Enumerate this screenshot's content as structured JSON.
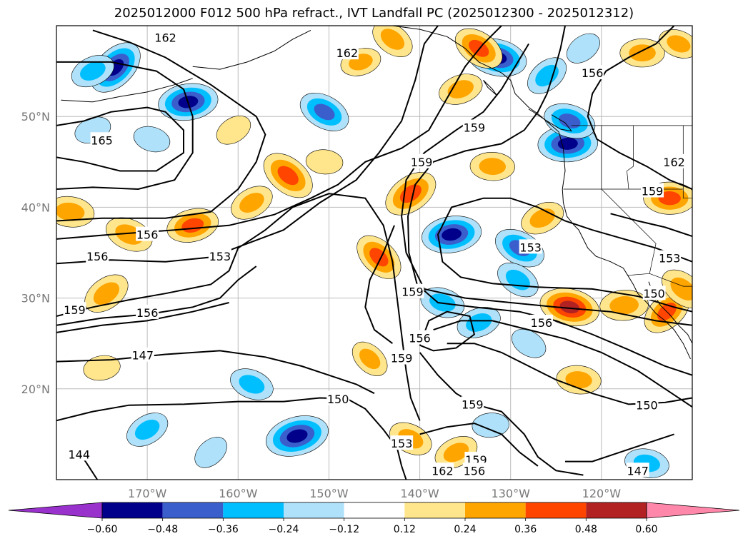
{
  "chart_data": {
    "type": "heatmap",
    "title": "2025012000 F012 500 hPa refract., IVT Landfall PC (2025012300 - 2025012312)",
    "x_axis": {
      "range": [
        -180,
        -110
      ],
      "ticks": [
        -170,
        -160,
        -150,
        -140,
        -130,
        -120
      ],
      "tick_labels": [
        "170°W",
        "160°W",
        "150°W",
        "140°W",
        "130°W",
        "120°W"
      ]
    },
    "y_axis": {
      "range": [
        10,
        60
      ],
      "ticks": [
        20,
        30,
        40,
        50
      ],
      "tick_labels": [
        "20°N",
        "30°N",
        "40°N",
        "50°N"
      ]
    },
    "grid": true,
    "colorbar": {
      "orientation": "horizontal",
      "extend": "both",
      "boundaries": [
        -0.6,
        -0.48,
        -0.36,
        -0.24,
        -0.12,
        0.12,
        0.24,
        0.36,
        0.48,
        0.6
      ],
      "tick_labels": [
        "−0.60",
        "−0.48",
        "−0.36",
        "−0.24",
        "−0.12",
        "0.12",
        "0.24",
        "0.36",
        "0.48",
        "0.60"
      ],
      "colors": [
        "#9932cc",
        "#00008b",
        "#3a5fcd",
        "#00bfff",
        "#afe1fa",
        "#ffffff",
        "#ffe68c",
        "#ffa500",
        "#ff4500",
        "#b22222",
        "#ff88aa"
      ]
    },
    "contour_levels": [
      144,
      147,
      150,
      153,
      156,
      159,
      162,
      165
    ],
    "contour_labels": [
      {
        "text": "162",
        "lon": -168.0,
        "lat": 58.7
      },
      {
        "text": "162",
        "lon": -148.0,
        "lat": 57.0
      },
      {
        "text": "156",
        "lon": -121.0,
        "lat": 54.8
      },
      {
        "text": "165",
        "lon": -175.0,
        "lat": 47.4
      },
      {
        "text": "159",
        "lon": -134.0,
        "lat": 48.8
      },
      {
        "text": "159",
        "lon": -139.8,
        "lat": 45.0
      },
      {
        "text": "162",
        "lon": -112.0,
        "lat": 45.0
      },
      {
        "text": "159",
        "lon": -114.4,
        "lat": 41.8
      },
      {
        "text": "156",
        "lon": -170.0,
        "lat": 37.0
      },
      {
        "text": "156",
        "lon": -175.5,
        "lat": 34.6
      },
      {
        "text": "153",
        "lon": -162.0,
        "lat": 34.6
      },
      {
        "text": "153",
        "lon": -127.8,
        "lat": 35.6
      },
      {
        "text": "153",
        "lon": -112.5,
        "lat": 34.4
      },
      {
        "text": "159",
        "lon": -140.8,
        "lat": 30.7
      },
      {
        "text": "150",
        "lon": -114.2,
        "lat": 30.5
      },
      {
        "text": "159",
        "lon": -178.0,
        "lat": 28.7
      },
      {
        "text": "156",
        "lon": -170.0,
        "lat": 28.4
      },
      {
        "text": "156",
        "lon": -126.6,
        "lat": 27.3
      },
      {
        "text": "156",
        "lon": -140.0,
        "lat": 25.6
      },
      {
        "text": "159",
        "lon": -142.0,
        "lat": 23.4
      },
      {
        "text": "147",
        "lon": -170.5,
        "lat": 23.7
      },
      {
        "text": "159",
        "lon": -134.2,
        "lat": 18.3
      },
      {
        "text": "150",
        "lon": -149.0,
        "lat": 18.9
      },
      {
        "text": "150",
        "lon": -115.0,
        "lat": 18.2
      },
      {
        "text": "153",
        "lon": -142.0,
        "lat": 14.0
      },
      {
        "text": "144",
        "lon": -177.5,
        "lat": 12.8
      },
      {
        "text": "159",
        "lon": -133.8,
        "lat": 12.2
      },
      {
        "text": "162",
        "lon": -137.5,
        "lat": 11.0
      },
      {
        "text": "156",
        "lon": -134.0,
        "lat": 11.0
      },
      {
        "text": "147",
        "lon": -116.0,
        "lat": 11.0
      }
    ],
    "pc_features": [
      {
        "lon": -173.5,
        "lat": 55.4,
        "sign": -1,
        "mag": 0.5
      },
      {
        "lon": -165.5,
        "lat": 51.6,
        "sign": -1,
        "mag": 0.5
      },
      {
        "lon": -150.5,
        "lat": 50.5,
        "sign": -1,
        "mag": 0.4
      },
      {
        "lon": -176.0,
        "lat": 55.0,
        "sign": -1,
        "mag": 0.3
      },
      {
        "lon": -131.5,
        "lat": 56.5,
        "sign": -1,
        "mag": 0.5
      },
      {
        "lon": -126.0,
        "lat": 54.5,
        "sign": -1,
        "mag": 0.3
      },
      {
        "lon": -123.7,
        "lat": 47.0,
        "sign": -1,
        "mag": 0.5
      },
      {
        "lon": -133.5,
        "lat": 57.5,
        "sign": 1,
        "mag": 0.4
      },
      {
        "lon": -135.5,
        "lat": 53.0,
        "sign": 1,
        "mag": 0.3
      },
      {
        "lon": -123.5,
        "lat": 49.5,
        "sign": -1,
        "mag": 0.4
      },
      {
        "lon": -141.0,
        "lat": 41.5,
        "sign": 1,
        "mag": 0.45
      },
      {
        "lon": -132.0,
        "lat": 44.5,
        "sign": 1,
        "mag": 0.3
      },
      {
        "lon": -154.5,
        "lat": 43.5,
        "sign": 1,
        "mag": 0.45
      },
      {
        "lon": -165.0,
        "lat": 38.0,
        "sign": 1,
        "mag": 0.4
      },
      {
        "lon": -172.0,
        "lat": 37.0,
        "sign": 1,
        "mag": 0.35
      },
      {
        "lon": -158.5,
        "lat": 40.5,
        "sign": 1,
        "mag": 0.3
      },
      {
        "lon": -178.5,
        "lat": 39.5,
        "sign": 1,
        "mag": 0.35
      },
      {
        "lon": -144.5,
        "lat": 34.5,
        "sign": 1,
        "mag": 0.4
      },
      {
        "lon": -136.5,
        "lat": 37.0,
        "sign": -1,
        "mag": 0.5
      },
      {
        "lon": -129.0,
        "lat": 35.5,
        "sign": -1,
        "mag": 0.4
      },
      {
        "lon": -126.5,
        "lat": 38.8,
        "sign": 1,
        "mag": 0.3
      },
      {
        "lon": -123.5,
        "lat": 29.0,
        "sign": 1,
        "mag": 0.5
      },
      {
        "lon": -112.8,
        "lat": 28.5,
        "sign": 1,
        "mag": 0.4
      },
      {
        "lon": -117.5,
        "lat": 29.2,
        "sign": 1,
        "mag": 0.35
      },
      {
        "lon": -129.2,
        "lat": 32.0,
        "sign": -1,
        "mag": 0.3
      },
      {
        "lon": -133.5,
        "lat": 27.3,
        "sign": -1,
        "mag": 0.3
      },
      {
        "lon": -137.5,
        "lat": 29.5,
        "sign": -1,
        "mag": 0.3
      },
      {
        "lon": -174.5,
        "lat": 30.5,
        "sign": 1,
        "mag": 0.35
      },
      {
        "lon": -112.5,
        "lat": 41.0,
        "sign": 1,
        "mag": 0.4
      },
      {
        "lon": -111.0,
        "lat": 31.0,
        "sign": 1,
        "mag": 0.35
      },
      {
        "lon": -153.5,
        "lat": 14.8,
        "sign": -1,
        "mag": 0.55
      },
      {
        "lon": -158.5,
        "lat": 20.5,
        "sign": -1,
        "mag": 0.3
      },
      {
        "lon": -170.0,
        "lat": 15.5,
        "sign": -1,
        "mag": 0.3
      },
      {
        "lon": -122.5,
        "lat": 21.0,
        "sign": 1,
        "mag": 0.3
      },
      {
        "lon": -145.5,
        "lat": 23.3,
        "sign": 1,
        "mag": 0.25
      },
      {
        "lon": -175.0,
        "lat": 22.3,
        "sign": 1,
        "mag": 0.2
      },
      {
        "lon": -141.0,
        "lat": 14.5,
        "sign": 1,
        "mag": 0.3
      },
      {
        "lon": -136.0,
        "lat": 13.0,
        "sign": 1,
        "mag": 0.3
      },
      {
        "lon": -115.0,
        "lat": 11.8,
        "sign": -1,
        "mag": 0.3
      },
      {
        "lon": -163.0,
        "lat": 13.0,
        "sign": -1,
        "mag": 0.2
      },
      {
        "lon": -132.2,
        "lat": 16.0,
        "sign": -1,
        "mag": 0.2
      },
      {
        "lon": -128.0,
        "lat": 25.0,
        "sign": -1,
        "mag": 0.2
      },
      {
        "lon": -176.0,
        "lat": 48.5,
        "sign": -1,
        "mag": 0.2
      },
      {
        "lon": -169.5,
        "lat": 47.5,
        "sign": -1,
        "mag": 0.2
      },
      {
        "lon": -122.0,
        "lat": 57.5,
        "sign": -1,
        "mag": 0.2
      },
      {
        "lon": -115.5,
        "lat": 57.0,
        "sign": 1,
        "mag": 0.3
      },
      {
        "lon": -143.0,
        "lat": 58.5,
        "sign": 1,
        "mag": 0.3
      },
      {
        "lon": -146.5,
        "lat": 56.0,
        "sign": 1,
        "mag": 0.25
      },
      {
        "lon": -111.5,
        "lat": 58.0,
        "sign": 1,
        "mag": 0.25
      },
      {
        "lon": -160.5,
        "lat": 48.5,
        "sign": 1,
        "mag": 0.2
      },
      {
        "lon": -150.5,
        "lat": 45.0,
        "sign": 1,
        "mag": 0.2
      }
    ]
  }
}
